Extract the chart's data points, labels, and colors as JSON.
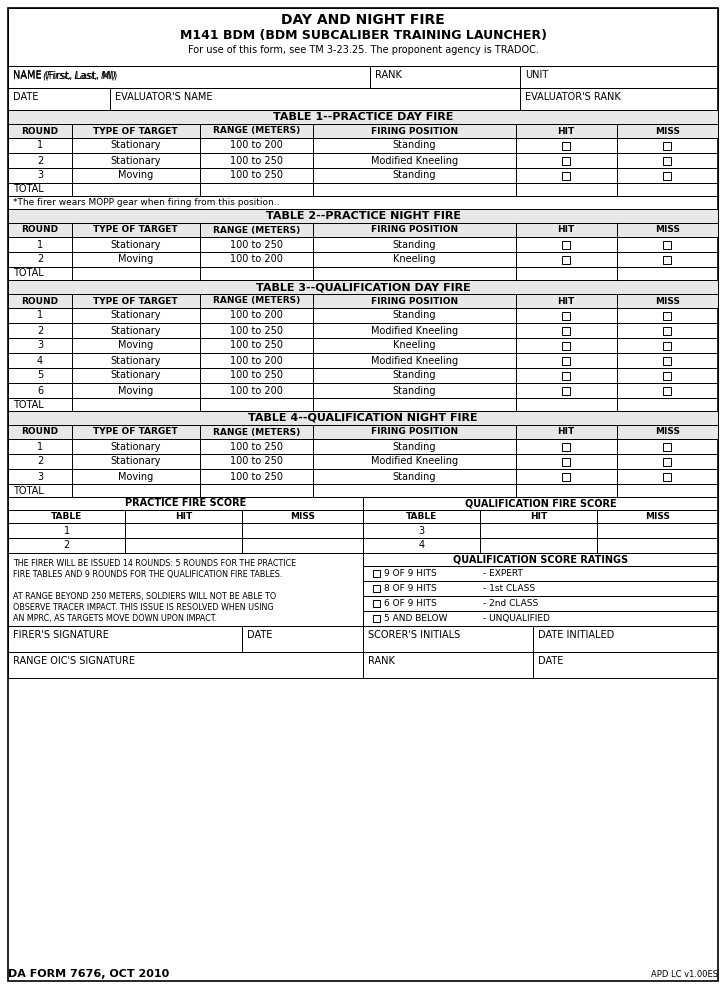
{
  "title1": "DAY AND NIGHT FIRE",
  "title2": "M141 BDM (BDM SUBCALIBER TRAINING LAUNCHER)",
  "title3": "For use of this form, see TM 3-23.25. The proponent agency is TRADOC.",
  "form_id": "DA FORM 7676, OCT 2010",
  "apd": "APD LC v1.00ES",
  "bg_color": "#ffffff",
  "table1_title": "TABLE 1--PRACTICE DAY FIRE",
  "table2_title": "TABLE 2--PRACTICE NIGHT FIRE",
  "table3_title": "TABLE 3--QUALIFICATION DAY FIRE",
  "table4_title": "TABLE 4--QUALIFICATION NIGHT FIRE",
  "col_headers": [
    "ROUND",
    "TYPE OF TARGET",
    "RANGE (METERS)",
    "FIRING POSITION",
    "HIT",
    "MISS"
  ],
  "table1_rows": [
    [
      "1",
      "Stationary",
      "100 to 200",
      "Standing"
    ],
    [
      "2",
      "Stationary",
      "100 to 250",
      "Modified Kneeling"
    ],
    [
      "3",
      "Moving",
      "100 to 250",
      "Standing"
    ]
  ],
  "table2_rows": [
    [
      "1",
      "Stationary",
      "100 to 250",
      "Standing"
    ],
    [
      "2",
      "Moving",
      "100 to 200",
      "Kneeling"
    ]
  ],
  "table3_rows": [
    [
      "1",
      "Stationary",
      "100 to 200",
      "Standing"
    ],
    [
      "2",
      "Stationary",
      "100 to 250",
      "Modified Kneeling"
    ],
    [
      "3",
      "Moving",
      "100 to 250",
      "Kneeling"
    ],
    [
      "4",
      "Stationary",
      "100 to 200",
      "Modified Kneeling"
    ],
    [
      "5",
      "Stationary",
      "100 to 250",
      "Standing"
    ],
    [
      "6",
      "Moving",
      "100 to 200",
      "Standing"
    ]
  ],
  "table4_rows": [
    [
      "1",
      "Stationary",
      "100 to 250",
      "Standing"
    ],
    [
      "2",
      "Stationary",
      "100 to 250",
      "Modified Kneeling"
    ],
    [
      "3",
      "Moving",
      "100 to 250",
      "Standing"
    ]
  ],
  "mopp_note": "*The firer wears MOPP gear when firing from this position..",
  "score_notes_left": [
    "THE FIRER WILL BE ISSUED 14 ROUNDS: 5 ROUNDS FOR THE PRACTICE",
    "FIRE TABLES AND 9 ROUNDS FOR THE QUALIFICATION FIRE TABLES.",
    "",
    "AT RANGE BEYOND 250 METERS, SOLDIERS WILL NOT BE ABLE TO",
    "OBSERVE TRACER IMPACT. THIS ISSUE IS RESOLVED WHEN USING",
    "AN MPRC, AS TARGETS MOVE DOWN UPON IMPACT."
  ],
  "ratings": [
    [
      "9 OF 9 HITS",
      "- EXPERT"
    ],
    [
      "8 OF 9 HITS",
      "- 1st CLASS"
    ],
    [
      "6 OF 9 HITS",
      "- 2nd CLASS"
    ],
    [
      "5 AND BELOW",
      "- UNQUALIFIED"
    ]
  ],
  "qual_score_title": "QUALIFICATION SCORE RATINGS",
  "prac_score_title": "PRACTICE FIRE SCORE",
  "qual_fire_score_title": "QUALIFICATION FIRE SCORE",
  "score_col_headers": [
    "TABLE",
    "HIT",
    "MISS"
  ],
  "prac_tables": [
    "1",
    "2"
  ],
  "qual_tables": [
    "3",
    "4"
  ],
  "name_label": "NAME (First, Last, MI)",
  "rank_label": "RANK",
  "unit_label": "UNIT",
  "date_label": "DATE",
  "eval_name_label": "EVALUATOR'S NAME",
  "eval_rank_label": "EVALUATOR'S RANK",
  "firer_sig_label": "FIRER'S SIGNATURE",
  "date_label2": "DATE",
  "scorer_label": "SCORER'S INITIALS",
  "date_initialed_label": "DATE INITIALED",
  "oic_label": "RANGE OIC'S SIGNATURE",
  "rank_label2": "RANK",
  "date_label3": "DATE"
}
